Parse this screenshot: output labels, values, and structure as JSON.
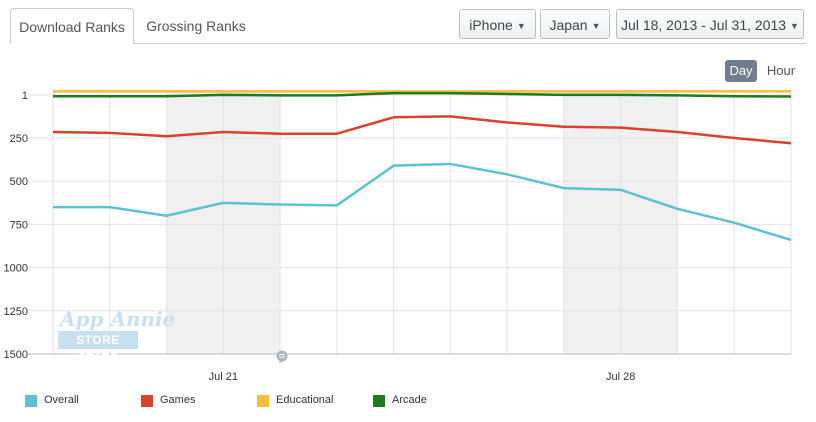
{
  "tabs": [
    {
      "label": "Download Ranks",
      "active": true
    },
    {
      "label": "Grossing Ranks",
      "active": false
    }
  ],
  "filters": {
    "device": "iPhone",
    "country": "Japan",
    "date_range": "Jul 18, 2013 - Jul 31, 2013"
  },
  "granularity": {
    "day": "Day",
    "hour": "Hour",
    "selected": "Day"
  },
  "watermark": {
    "title": "App Annie",
    "subtitle": "STORE STATS"
  },
  "colors": {
    "overall": "#5bc2cf",
    "games": "#d9432e",
    "educational": "#f5bd3a",
    "arcade": "#1d7a1d",
    "weekend_band": "#f0f0f0",
    "grid": "#e2e2e2"
  },
  "icons": {
    "comment": "speech-bubble-icon",
    "caret": "caret-down-icon"
  },
  "chart_data": {
    "type": "line",
    "x": [
      "Jul 18",
      "Jul 19",
      "Jul 20",
      "Jul 21",
      "Jul 22",
      "Jul 23",
      "Jul 24",
      "Jul 25",
      "Jul 26",
      "Jul 27",
      "Jul 28",
      "Jul 29",
      "Jul 30",
      "Jul 31"
    ],
    "x_tick_labels": [
      {
        "label": "Jul 21",
        "x": "Jul 21"
      },
      {
        "label": "Jul 28",
        "x": "Jul 28"
      }
    ],
    "y_ticks": [
      1,
      250,
      500,
      750,
      1000,
      1250,
      1500
    ],
    "ylim": [
      1500,
      1
    ],
    "y_inverted": true,
    "weekend_bands": [
      [
        "Jul 20",
        "Jul 21"
      ],
      [
        "Jul 27",
        "Jul 28"
      ]
    ],
    "series": [
      {
        "name": "Overall",
        "key": "overall",
        "values": [
          650,
          650,
          700,
          625,
          635,
          640,
          410,
          400,
          460,
          540,
          550,
          660,
          740,
          840
        ]
      },
      {
        "name": "Games",
        "key": "games",
        "values": [
          215,
          220,
          240,
          215,
          225,
          225,
          130,
          125,
          160,
          185,
          190,
          215,
          250,
          280
        ]
      },
      {
        "name": "Educational",
        "key": "educational",
        "values": [
          -20,
          -20,
          -20,
          -20,
          -20,
          -20,
          -20,
          -20,
          -20,
          -20,
          -20,
          -20,
          -20,
          -20
        ]
      },
      {
        "name": "Arcade",
        "key": "arcade",
        "values": [
          8,
          8,
          8,
          0,
          3,
          3,
          -10,
          -10,
          -5,
          0,
          0,
          3,
          8,
          10
        ]
      }
    ],
    "legend": [
      "Overall",
      "Games",
      "Educational",
      "Arcade"
    ],
    "legend_position": "bottom-left",
    "grid": true
  }
}
